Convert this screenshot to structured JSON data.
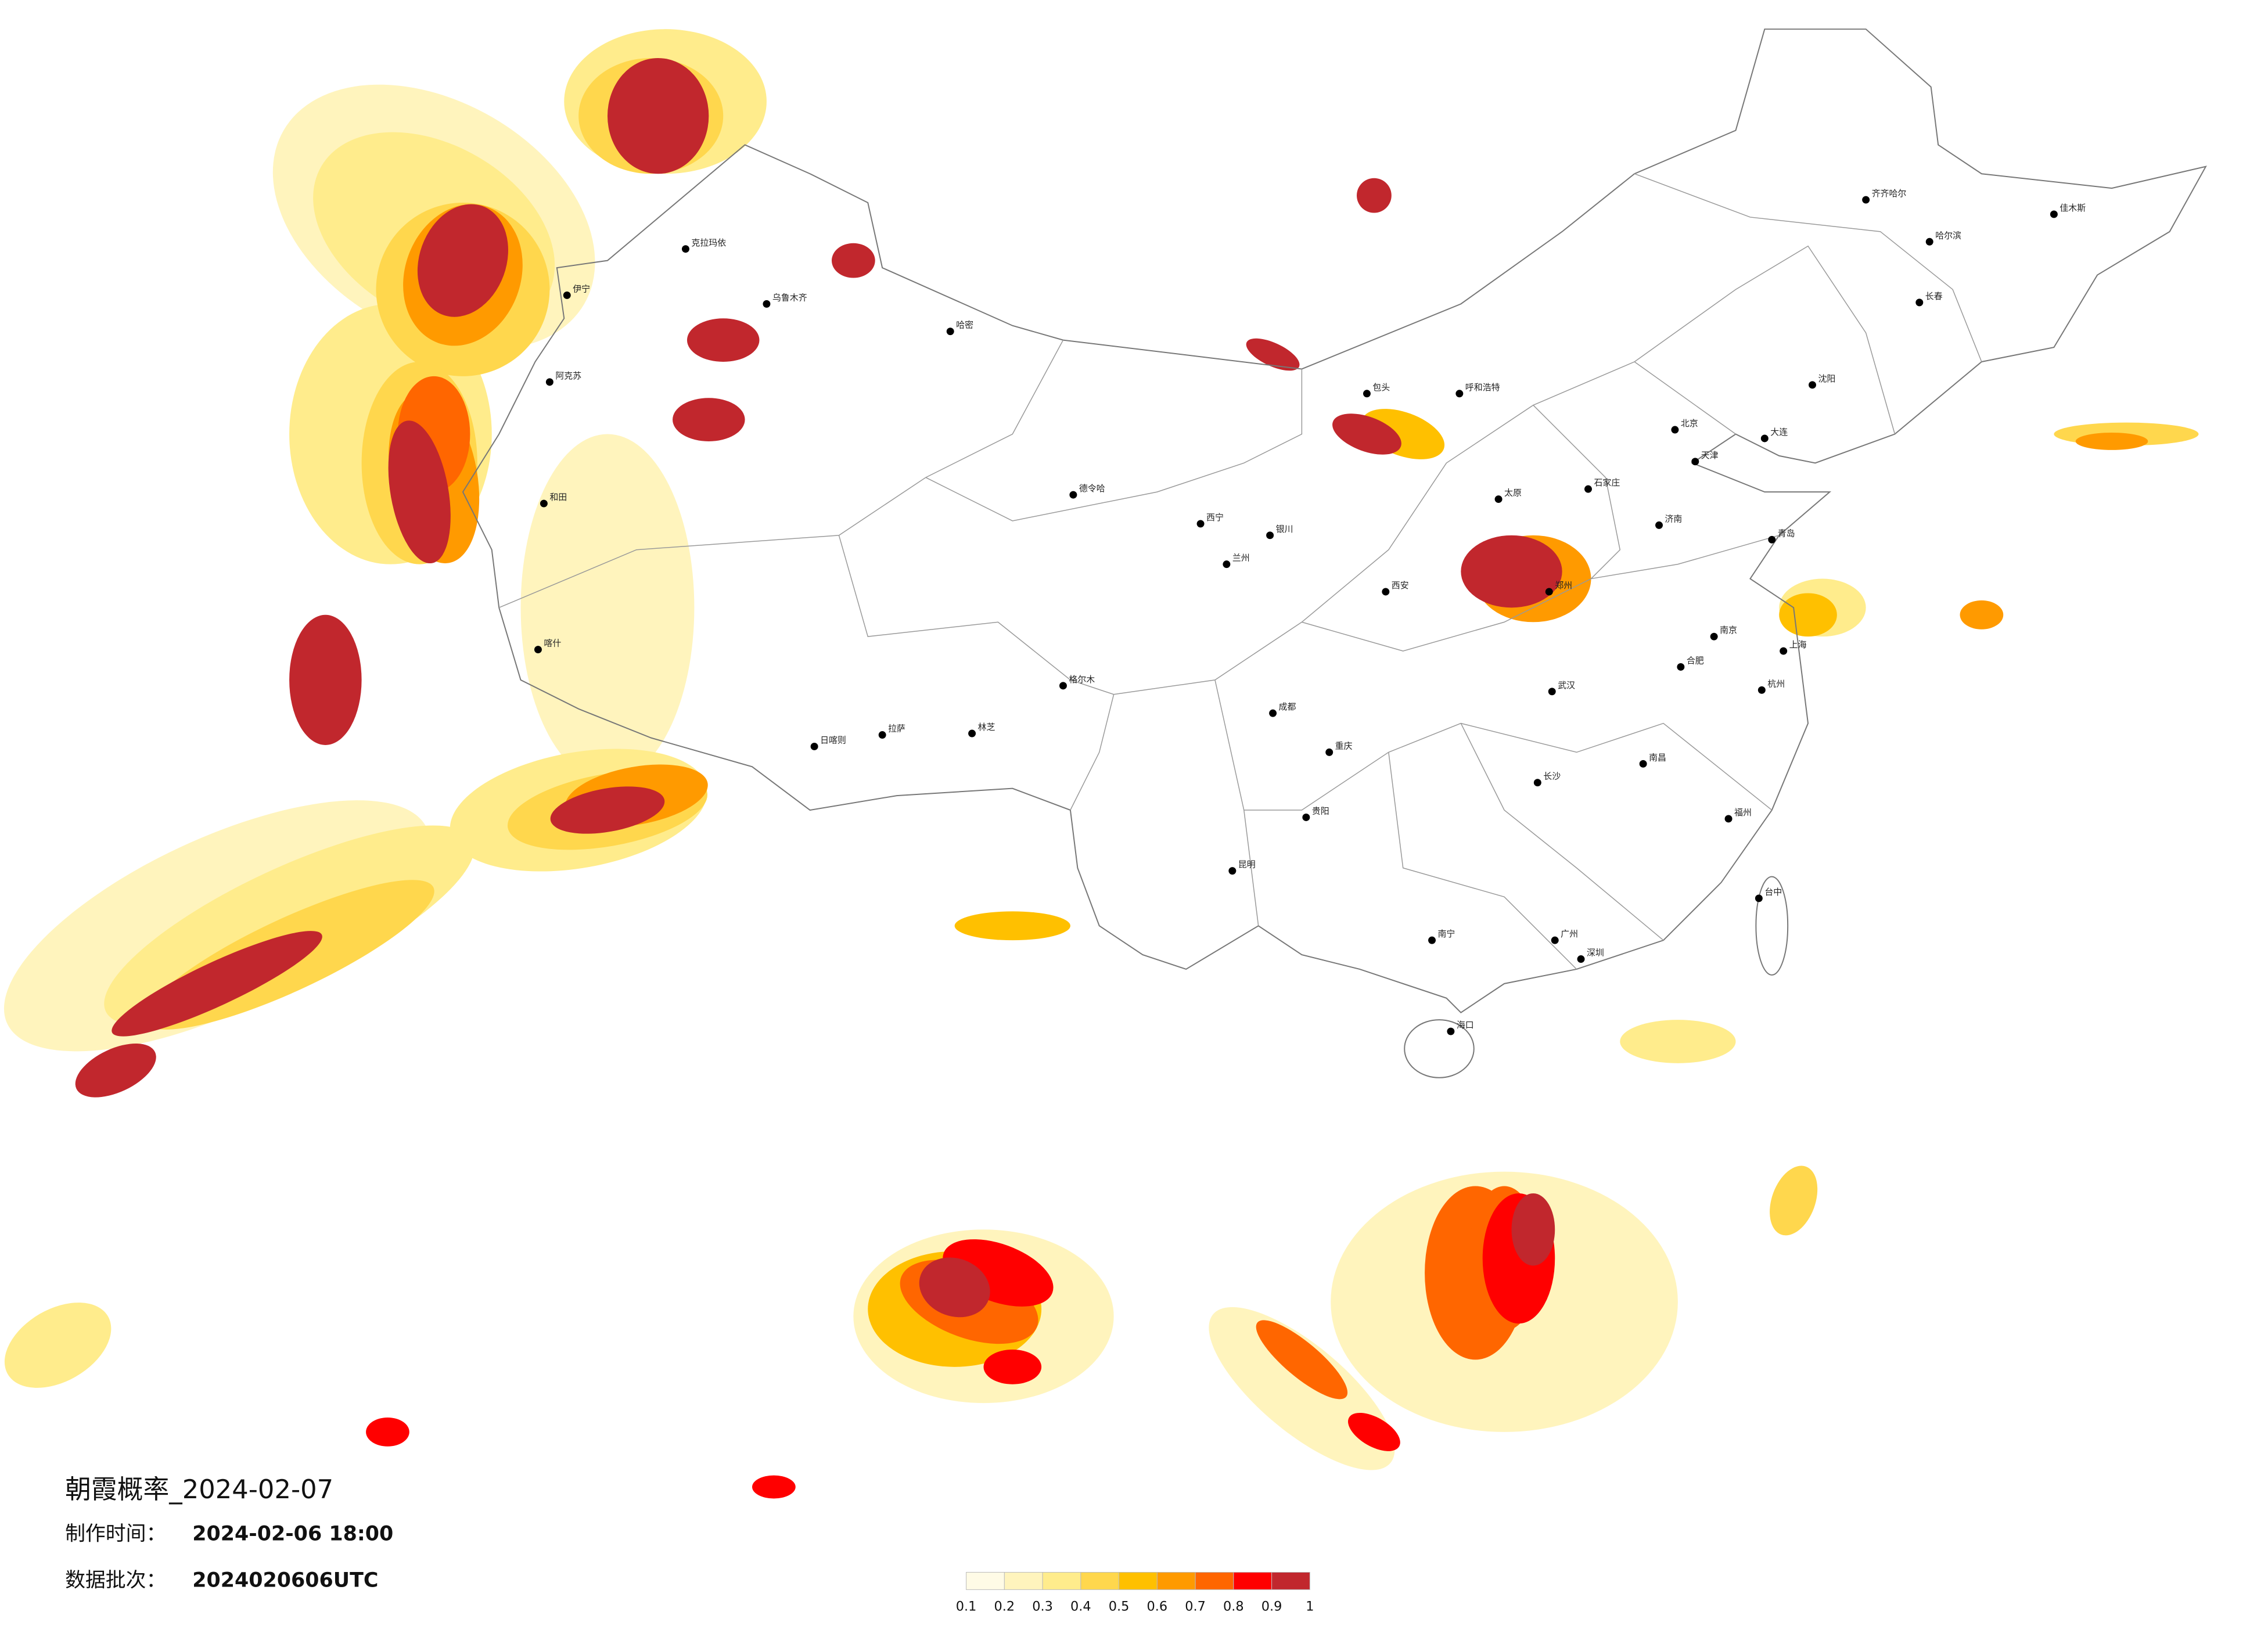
{
  "title": "朝霞概率_2024-02-07",
  "made_label": "制作时间：",
  "made_time": "2024-02-06 18:00",
  "batch_label": "数据批次：",
  "batch": "2024020606UTC",
  "legend": {
    "bounds": [
      0.1,
      0.2,
      0.3,
      0.4,
      0.5,
      0.6,
      0.7,
      0.8,
      0.9,
      1
    ],
    "colors": [
      "#fffbe6",
      "#fff4bd",
      "#ffec8c",
      "#ffd74d",
      "#ffc000",
      "#ff9a00",
      "#ff6600",
      "#ff0000",
      "#c1272d"
    ]
  },
  "cities": [
    "伊宁",
    "和田",
    "喀什",
    "阿克苏",
    "克拉玛依",
    "乌鲁木齐",
    "哈密",
    "德令哈",
    "格尔木",
    "日喀则",
    "拉萨",
    "林芝",
    "西宁",
    "兰州",
    "银川",
    "呼和浩特",
    "包头",
    "北京",
    "天津",
    "石家庄",
    "太原",
    "郑州",
    "西安",
    "济南",
    "青岛",
    "南京",
    "上海",
    "杭州",
    "合肥",
    "武汉",
    "长沙",
    "南昌",
    "福州",
    "广州",
    "深圳",
    "南宁",
    "贵阳",
    "昆明",
    "成都",
    "重庆",
    "海口",
    "沈阳",
    "长春",
    "哈尔滨",
    "大连",
    "台中",
    "齐齐哈尔",
    "佳木斯"
  ]
}
